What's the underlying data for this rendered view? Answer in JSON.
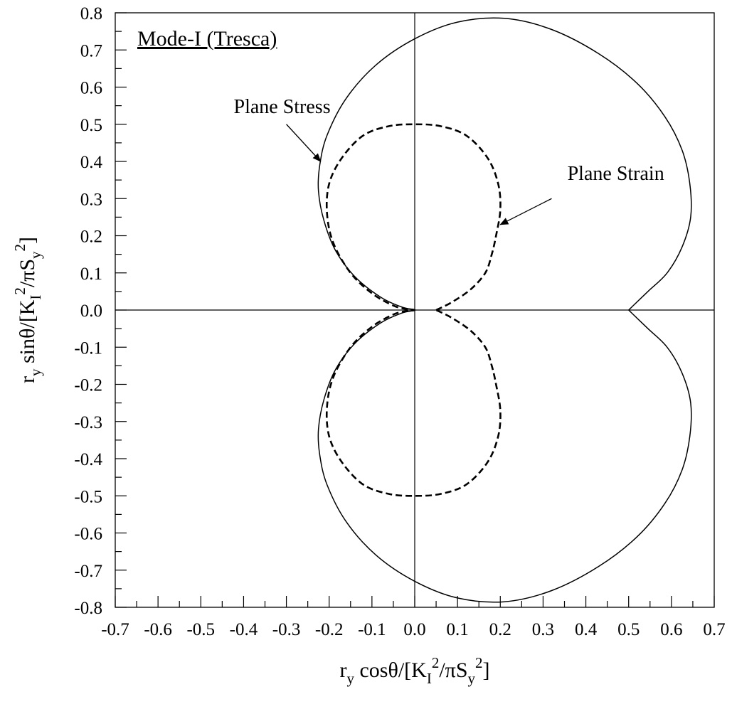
{
  "chart_data": {
    "type": "line",
    "title": "Mode-I (Tresca)",
    "xlabel": {
      "base": "r",
      "sub_r": "y",
      "mid": " cosθ/[K",
      "sub_k": "I",
      "sup_k": "2",
      "mid2": "/πS",
      "sub_s": "y",
      "sup_s": "2",
      "end": "]"
    },
    "ylabel": {
      "base": "r",
      "sub_r": "y",
      "mid": " sinθ/[K",
      "sub_k": "I",
      "sup_k": "2",
      "mid2": "/πS",
      "sub_s": "y",
      "sup_s": "2",
      "end": "]"
    },
    "xlim": [
      -0.7,
      0.7
    ],
    "ylim": [
      -0.8,
      0.8
    ],
    "x_ticks": [
      "-0.7",
      "-0.6",
      "-0.5",
      "-0.4",
      "-0.3",
      "-0.2",
      "-0.1",
      "0.0",
      "0.1",
      "0.2",
      "0.3",
      "0.4",
      "0.5",
      "0.6",
      "0.7"
    ],
    "y_ticks": [
      "0.8",
      "0.7",
      "0.6",
      "0.5",
      "0.4",
      "0.3",
      "0.2",
      "0.1",
      "0.0",
      "-0.1",
      "-0.2",
      "-0.3",
      "-0.4",
      "-0.5",
      "-0.6",
      "-0.7",
      "-0.8"
    ],
    "grid": false,
    "series": [
      {
        "name": "Plane Stress",
        "style": "solid",
        "color": "#000000",
        "points": [
          [
            0.5,
            0.0
          ],
          [
            0.545,
            0.05
          ],
          [
            0.59,
            0.1
          ],
          [
            0.625,
            0.17
          ],
          [
            0.645,
            0.25
          ],
          [
            0.643,
            0.34
          ],
          [
            0.625,
            0.43
          ],
          [
            0.585,
            0.52
          ],
          [
            0.52,
            0.61
          ],
          [
            0.43,
            0.69
          ],
          [
            0.32,
            0.755
          ],
          [
            0.21,
            0.785
          ],
          [
            0.1,
            0.775
          ],
          [
            0.0,
            0.73
          ],
          [
            -0.09,
            0.66
          ],
          [
            -0.16,
            0.57
          ],
          [
            -0.205,
            0.47
          ],
          [
            -0.222,
            0.39
          ],
          [
            -0.225,
            0.32
          ],
          [
            -0.212,
            0.24
          ],
          [
            -0.185,
            0.16
          ],
          [
            -0.14,
            0.09
          ],
          [
            -0.08,
            0.035
          ],
          [
            -0.03,
            0.008
          ],
          [
            0.0,
            0.0
          ],
          [
            -0.03,
            -0.008
          ],
          [
            -0.08,
            -0.035
          ],
          [
            -0.14,
            -0.09
          ],
          [
            -0.185,
            -0.16
          ],
          [
            -0.212,
            -0.24
          ],
          [
            -0.225,
            -0.32
          ],
          [
            -0.222,
            -0.39
          ],
          [
            -0.205,
            -0.47
          ],
          [
            -0.16,
            -0.57
          ],
          [
            -0.09,
            -0.66
          ],
          [
            0.0,
            -0.73
          ],
          [
            0.1,
            -0.775
          ],
          [
            0.21,
            -0.785
          ],
          [
            0.32,
            -0.755
          ],
          [
            0.43,
            -0.69
          ],
          [
            0.52,
            -0.61
          ],
          [
            0.585,
            -0.52
          ],
          [
            0.625,
            -0.43
          ],
          [
            0.643,
            -0.34
          ],
          [
            0.645,
            -0.25
          ],
          [
            0.625,
            -0.17
          ],
          [
            0.59,
            -0.1
          ],
          [
            0.545,
            -0.05
          ],
          [
            0.5,
            0.0
          ]
        ]
      },
      {
        "name": "Plane Strain",
        "style": "dashed",
        "color": "#000000",
        "points": [
          [
            0.05,
            0.0
          ],
          [
            0.085,
            0.02
          ],
          [
            0.13,
            0.055
          ],
          [
            0.165,
            0.1
          ],
          [
            0.18,
            0.15
          ],
          [
            0.19,
            0.2
          ],
          [
            0.2,
            0.27
          ],
          [
            0.195,
            0.34
          ],
          [
            0.17,
            0.41
          ],
          [
            0.12,
            0.47
          ],
          [
            0.06,
            0.495
          ],
          [
            0.0,
            0.5
          ],
          [
            -0.06,
            0.495
          ],
          [
            -0.12,
            0.47
          ],
          [
            -0.17,
            0.41
          ],
          [
            -0.2,
            0.34
          ],
          [
            -0.205,
            0.26
          ],
          [
            -0.19,
            0.18
          ],
          [
            -0.15,
            0.1
          ],
          [
            -0.1,
            0.045
          ],
          [
            -0.05,
            0.012
          ],
          [
            -0.02,
            0.003
          ],
          [
            0.0,
            0.0
          ],
          [
            -0.02,
            -0.003
          ],
          [
            -0.05,
            -0.012
          ],
          [
            -0.1,
            -0.045
          ],
          [
            -0.15,
            -0.1
          ],
          [
            -0.19,
            -0.18
          ],
          [
            -0.205,
            -0.26
          ],
          [
            -0.2,
            -0.34
          ],
          [
            -0.17,
            -0.41
          ],
          [
            -0.12,
            -0.47
          ],
          [
            -0.06,
            -0.495
          ],
          [
            0.0,
            -0.5
          ],
          [
            0.06,
            -0.495
          ],
          [
            0.12,
            -0.47
          ],
          [
            0.17,
            -0.41
          ],
          [
            0.195,
            -0.34
          ],
          [
            0.2,
            -0.27
          ],
          [
            0.19,
            -0.2
          ],
          [
            0.18,
            -0.15
          ],
          [
            0.165,
            -0.1
          ],
          [
            0.13,
            -0.055
          ],
          [
            0.085,
            -0.02
          ],
          [
            0.05,
            0.0
          ]
        ]
      }
    ],
    "annotations": [
      {
        "text": "Plane Stress",
        "label_at": [
          -0.31,
          0.53
        ],
        "arrow_from": [
          -0.3,
          0.5
        ],
        "arrow_to": [
          -0.22,
          0.4
        ]
      },
      {
        "text": "Plane Strain",
        "label_at": [
          0.47,
          0.35
        ],
        "arrow_from": [
          0.32,
          0.3
        ],
        "arrow_to": [
          0.2,
          0.23
        ]
      }
    ]
  }
}
